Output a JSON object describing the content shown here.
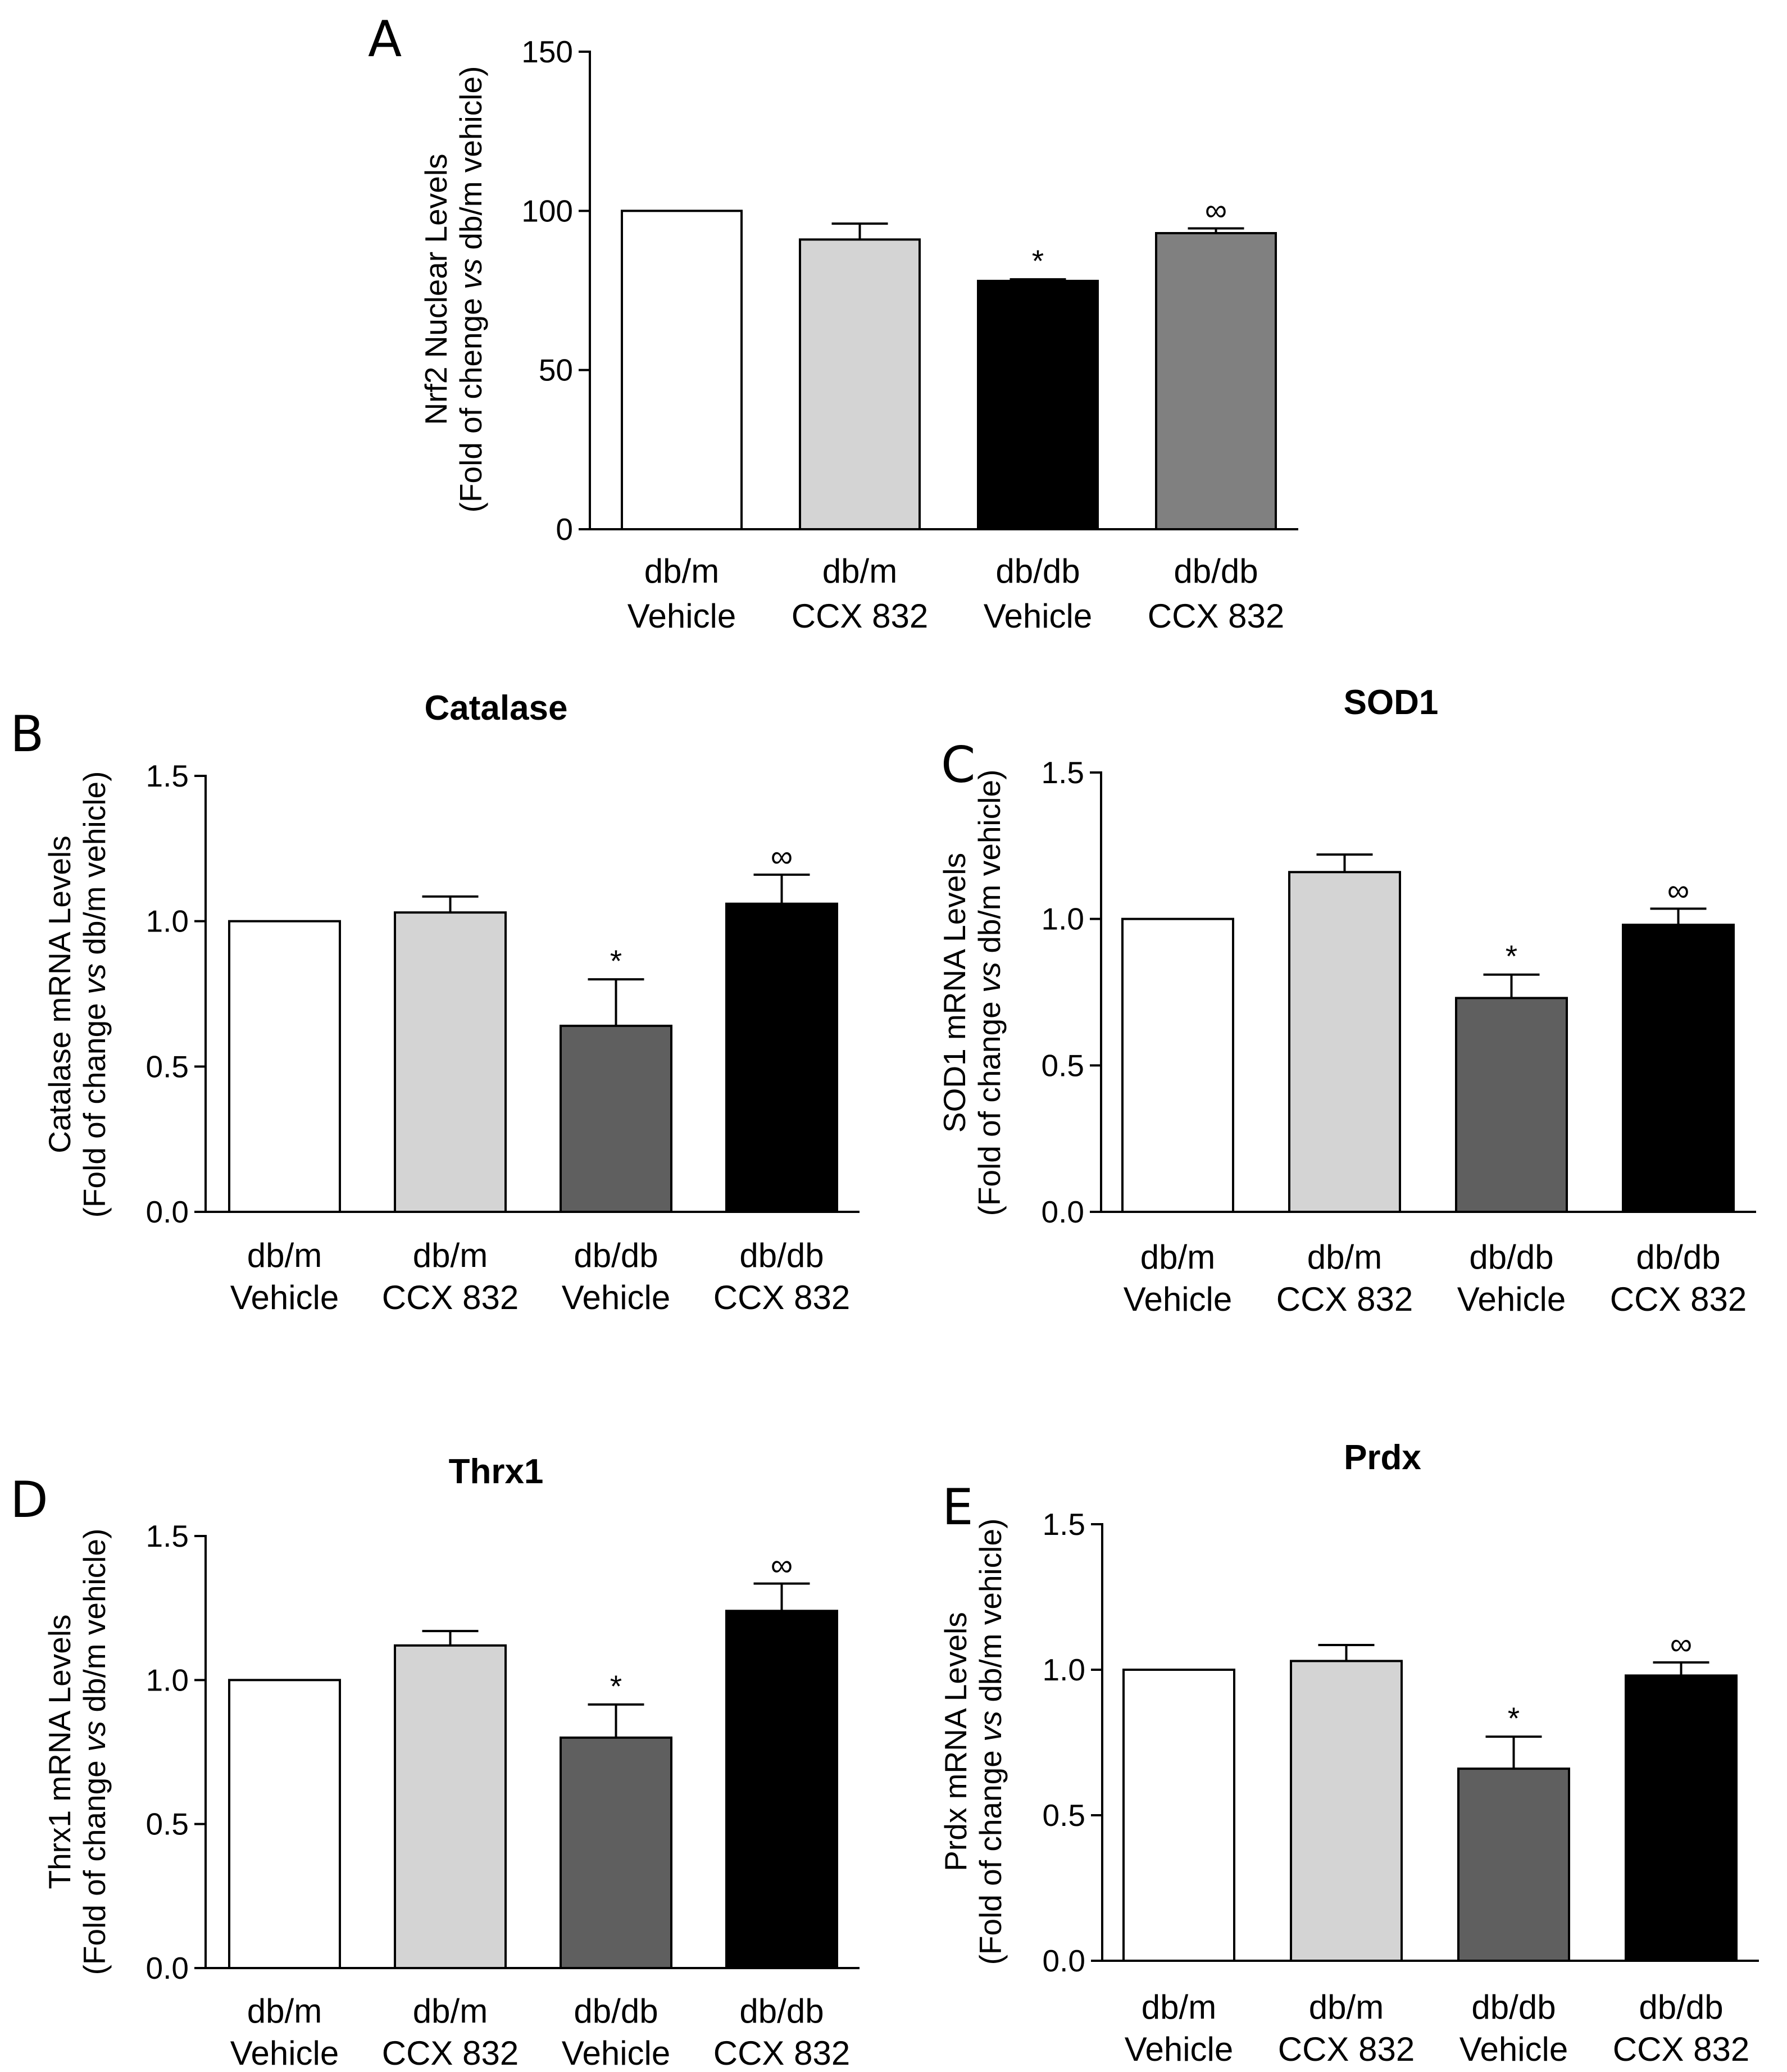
{
  "chart_data": [
    {
      "panel": "A",
      "type": "bar",
      "title": "",
      "categories": [
        [
          "db/m",
          "Vehicle"
        ],
        [
          "db/m",
          "CCX 832"
        ],
        [
          "db/db",
          "Vehicle"
        ],
        [
          "db/db",
          "CCX 832"
        ]
      ],
      "values": [
        100,
        91,
        78,
        93
      ],
      "errors": [
        0,
        5,
        0.5,
        1.5
      ],
      "markers": [
        "",
        "",
        "*",
        "∞"
      ],
      "colors": [
        "#ffffff",
        "#d4d4d4",
        "#000000",
        "#808080"
      ],
      "ylabel_lines": [
        [
          {
            "t": "Nrf2 Nuclear Levels",
            "i": false
          }
        ],
        [
          {
            "t": "(Fold of chenge ",
            "i": false
          },
          {
            "t": "vs",
            "i": true
          },
          {
            "t": " db/m vehicle)",
            "i": false
          }
        ]
      ],
      "ylim": [
        0,
        150
      ],
      "yticks": [
        0,
        50,
        100,
        150
      ],
      "ytick_labels": [
        "0",
        "50",
        "100",
        "150"
      ]
    },
    {
      "panel": "B",
      "type": "bar",
      "title": "Catalase",
      "categories": [
        [
          "db/m",
          "Vehicle"
        ],
        [
          "db/m",
          "CCX 832"
        ],
        [
          "db/db",
          "Vehicle"
        ],
        [
          "db/db",
          "CCX 832"
        ]
      ],
      "values": [
        1.0,
        1.03,
        0.64,
        1.06
      ],
      "errors": [
        0,
        0.055,
        0.16,
        0.1
      ],
      "markers": [
        "",
        "",
        "*",
        "∞"
      ],
      "colors": [
        "#ffffff",
        "#d4d4d4",
        "#5f5f5f",
        "#000000"
      ],
      "ylabel_lines": [
        [
          {
            "t": "Catalase mRNA Levels",
            "i": false
          }
        ],
        [
          {
            "t": "(Fold of change ",
            "i": false
          },
          {
            "t": "vs",
            "i": true
          },
          {
            "t": " db/m vehicle)",
            "i": false
          }
        ]
      ],
      "ylim": [
        0,
        1.5
      ],
      "yticks": [
        0,
        0.5,
        1.0,
        1.5
      ],
      "ytick_labels": [
        "0.0",
        "0.5",
        "1.0",
        "1.5"
      ]
    },
    {
      "panel": "C",
      "type": "bar",
      "title": "SOD1",
      "categories": [
        [
          "db/m",
          "Vehicle"
        ],
        [
          "db/m",
          "CCX 832"
        ],
        [
          "db/db",
          "Vehicle"
        ],
        [
          "db/db",
          "CCX 832"
        ]
      ],
      "values": [
        1.0,
        1.16,
        0.73,
        0.98
      ],
      "errors": [
        0,
        0.06,
        0.08,
        0.055
      ],
      "markers": [
        "",
        "",
        "*",
        "∞"
      ],
      "colors": [
        "#ffffff",
        "#d4d4d4",
        "#5f5f5f",
        "#000000"
      ],
      "ylabel_lines": [
        [
          {
            "t": "SOD1 mRNA Levels",
            "i": false
          }
        ],
        [
          {
            "t": "(Fold of change ",
            "i": false
          },
          {
            "t": "vs",
            "i": true
          },
          {
            "t": " db/m vehicle)",
            "i": false
          }
        ]
      ],
      "ylim": [
        0,
        1.5
      ],
      "yticks": [
        0,
        0.5,
        1.0,
        1.5
      ],
      "ytick_labels": [
        "0.0",
        "0.5",
        "1.0",
        "1.5"
      ]
    },
    {
      "panel": "D",
      "type": "bar",
      "title": "Thrx1",
      "categories": [
        [
          "db/m",
          "Vehicle"
        ],
        [
          "db/m",
          "CCX 832"
        ],
        [
          "db/db",
          "Vehicle"
        ],
        [
          "db/db",
          "CCX 832"
        ]
      ],
      "values": [
        1.0,
        1.12,
        0.8,
        1.24
      ],
      "errors": [
        0,
        0.05,
        0.115,
        0.095
      ],
      "markers": [
        "",
        "",
        "*",
        "∞"
      ],
      "colors": [
        "#ffffff",
        "#d4d4d4",
        "#5f5f5f",
        "#000000"
      ],
      "ylabel_lines": [
        [
          {
            "t": "Thrx1 mRNA Levels",
            "i": false
          }
        ],
        [
          {
            "t": "(Fold of change ",
            "i": false
          },
          {
            "t": "vs",
            "i": true
          },
          {
            "t": " db/m vehicle)",
            "i": false
          }
        ]
      ],
      "ylim": [
        0,
        1.5
      ],
      "yticks": [
        0,
        0.5,
        1.0,
        1.5
      ],
      "ytick_labels": [
        "0.0",
        "0.5",
        "1.0",
        "1.5"
      ]
    },
    {
      "panel": "E",
      "type": "bar",
      "title": "Prdx",
      "categories": [
        [
          "db/m",
          "Vehicle"
        ],
        [
          "db/m",
          "CCX 832"
        ],
        [
          "db/db",
          "Vehicle"
        ],
        [
          "db/db",
          "CCX 832"
        ]
      ],
      "values": [
        1.0,
        1.03,
        0.66,
        0.98
      ],
      "errors": [
        0,
        0.055,
        0.11,
        0.045
      ],
      "markers": [
        "",
        "",
        "*",
        "∞"
      ],
      "colors": [
        "#ffffff",
        "#d4d4d4",
        "#5f5f5f",
        "#000000"
      ],
      "ylabel_lines": [
        [
          {
            "t": "Prdx mRNA Levels",
            "i": false
          }
        ],
        [
          {
            "t": "(Fold of change ",
            "i": false
          },
          {
            "t": "vs",
            "i": true
          },
          {
            "t": " db/m vehicle)",
            "i": false
          }
        ]
      ],
      "ylim": [
        0,
        1.5
      ],
      "yticks": [
        0,
        0.5,
        1.0,
        1.5
      ],
      "ytick_labels": [
        "0.0",
        "0.5",
        "1.0",
        "1.5"
      ]
    }
  ]
}
